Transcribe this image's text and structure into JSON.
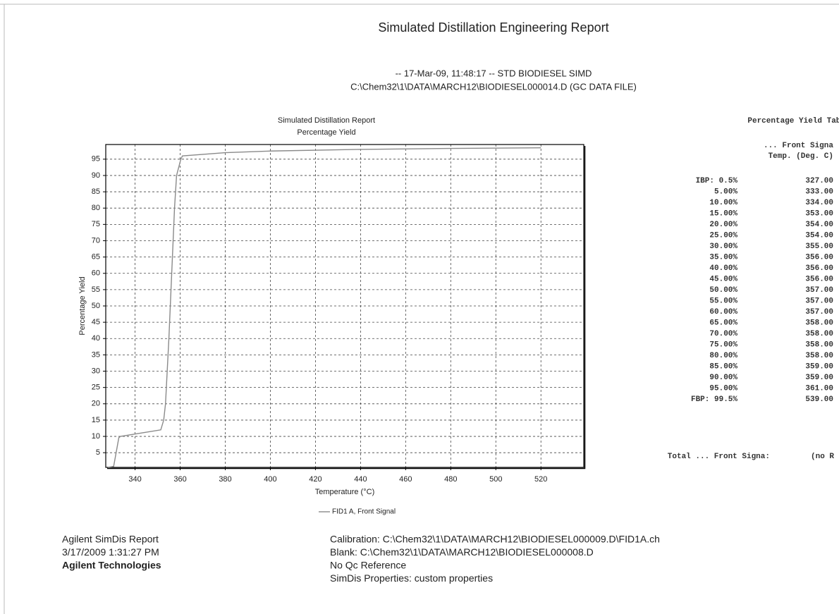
{
  "header": {
    "title": "Simulated Distillation Engineering Report",
    "run_info": "-- 17-Mar-09, 11:48:17 -- STD BIODIESEL SIMD",
    "file": "C:\\Chem32\\1\\DATA\\MARCH12\\BIODIESEL000014.D (GC DATA FILE)"
  },
  "chart_data": {
    "type": "line",
    "title": "Simulated Distillation Report",
    "subtitle": "Percentage Yield",
    "x_label": "Temperature (°C)",
    "y_label": "Percentage Yield",
    "x": [
      328,
      330.5,
      332.8,
      333.5,
      351.4,
      352.7,
      353.5,
      355,
      357.5,
      358.4,
      360.3,
      361,
      380,
      400,
      440,
      480,
      520
    ],
    "series": [
      {
        "name": "FID1 A, Front Signal",
        "color": "#8a8a8a",
        "values": [
          0.5,
          0.8,
          9.6,
          10,
          12,
          15,
          20,
          40,
          80,
          90,
          95,
          96,
          97,
          97.5,
          98,
          98.3,
          98.5
        ]
      }
    ],
    "xlim": [
      327,
      539
    ],
    "ylim": [
      0.5,
      99.5
    ],
    "xticks": [
      340,
      360,
      380,
      400,
      420,
      440,
      460,
      480,
      500,
      520
    ],
    "yticks": [
      5,
      10,
      15,
      20,
      25,
      30,
      35,
      40,
      45,
      50,
      55,
      60,
      65,
      70,
      75,
      80,
      85,
      90,
      95
    ],
    "grid": true,
    "legend": "bottom"
  },
  "table": {
    "title": "Percentage Yield Table",
    "column_headers": [
      "... Front Signa",
      "Temp. (Deg. C)"
    ],
    "rows": [
      [
        "IBP: 0.5%",
        "327.00"
      ],
      [
        "5.00%",
        "333.00"
      ],
      [
        "10.00%",
        "334.00"
      ],
      [
        "15.00%",
        "353.00"
      ],
      [
        "20.00%",
        "354.00"
      ],
      [
        "25.00%",
        "354.00"
      ],
      [
        "30.00%",
        "355.00"
      ],
      [
        "35.00%",
        "356.00"
      ],
      [
        "40.00%",
        "356.00"
      ],
      [
        "45.00%",
        "356.00"
      ],
      [
        "50.00%",
        "357.00"
      ],
      [
        "55.00%",
        "357.00"
      ],
      [
        "60.00%",
        "357.00"
      ],
      [
        "65.00%",
        "358.00"
      ],
      [
        "70.00%",
        "358.00"
      ],
      [
        "75.00%",
        "358.00"
      ],
      [
        "80.00%",
        "358.00"
      ],
      [
        "85.00%",
        "359.00"
      ],
      [
        "90.00%",
        "359.00"
      ],
      [
        "95.00%",
        "361.00"
      ],
      [
        "FBP: 99.5%",
        "539.00"
      ]
    ],
    "total": [
      "Total ... Front Signa:",
      "(no R"
    ]
  },
  "footer": {
    "left": [
      "Agilent SimDis Report",
      "3/17/2009 1:31:27 PM",
      "Agilent Technologies"
    ],
    "right": [
      "Calibration: C:\\Chem32\\1\\DATA\\MARCH12\\BIODIESEL000009.D\\FID1A.ch",
      "Blank: C:\\Chem32\\1\\DATA\\MARCH12\\BIODIESEL000008.D",
      "No Qc Reference",
      "SimDis Properties: custom properties"
    ]
  }
}
